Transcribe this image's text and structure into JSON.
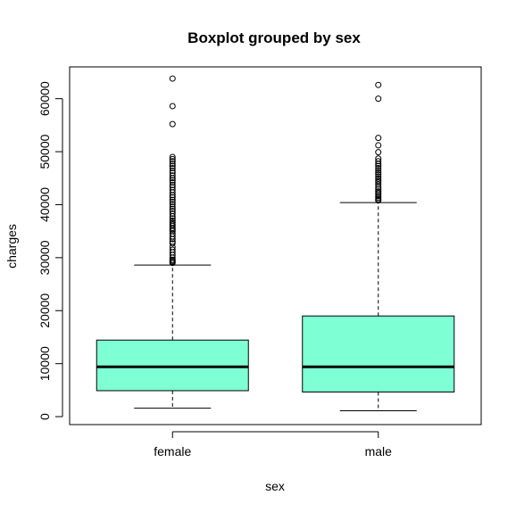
{
  "chart_data": {
    "type": "boxplot",
    "title": "Boxplot grouped by sex",
    "xlabel": "sex",
    "ylabel": "charges",
    "categories": [
      "female",
      "male"
    ],
    "ylim": [
      -1500,
      66000
    ],
    "yticks": [
      0,
      10000,
      20000,
      30000,
      40000,
      50000,
      60000
    ],
    "ytick_labels": [
      "0",
      "10000",
      "20000",
      "30000",
      "40000",
      "50000",
      "60000"
    ],
    "box_color": "#7fffd4",
    "grid": false,
    "groups": [
      {
        "name": "female",
        "whisker_low": 1600,
        "q1": 4900,
        "median": 9400,
        "q3": 14450,
        "whisker_high": 28600,
        "outliers": [
          29000,
          29200,
          29400,
          29600,
          30000,
          30500,
          31000,
          31500,
          32000,
          32700,
          33000,
          33500,
          34000,
          34500,
          35000,
          35300,
          35600,
          36000,
          36300,
          36600,
          37000,
          37400,
          37800,
          38300,
          38800,
          39200,
          39600,
          40100,
          40500,
          40900,
          41400,
          41800,
          42300,
          42800,
          43300,
          43700,
          44200,
          44600,
          45000,
          45500,
          46000,
          46400,
          46900,
          47300,
          47700,
          48200,
          48600,
          49000,
          55200,
          58600,
          63800
        ]
      },
      {
        "name": "male",
        "whisker_low": 1100,
        "q1": 4650,
        "median": 9400,
        "q3": 19000,
        "whisker_high": 40400,
        "outliers": [
          40800,
          41000,
          41300,
          41600,
          41900,
          42200,
          42500,
          42900,
          43300,
          43800,
          44200,
          44500,
          44900,
          45300,
          45700,
          46100,
          46500,
          46900,
          47300,
          47700,
          48200,
          48700,
          49900,
          51200,
          52600,
          60000,
          62600
        ]
      }
    ]
  }
}
